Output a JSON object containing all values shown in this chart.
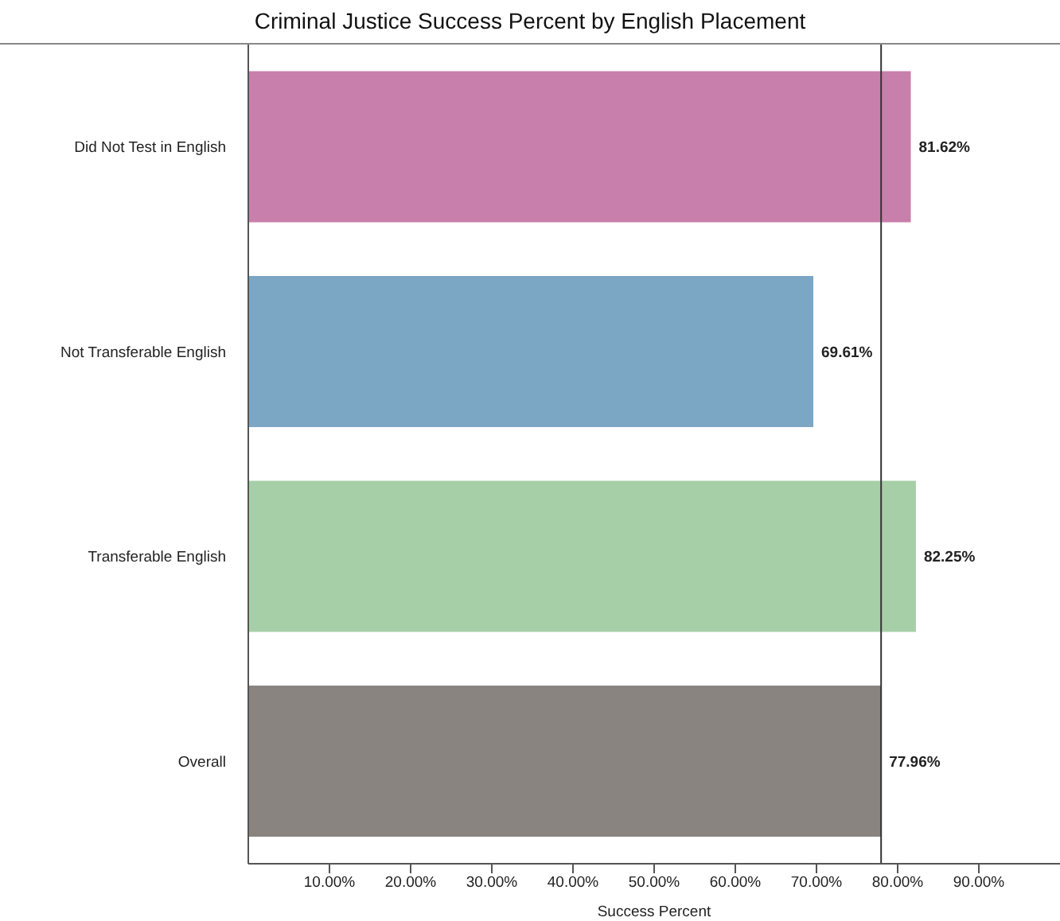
{
  "chart_data": {
    "type": "bar",
    "orientation": "horizontal",
    "title": "Criminal Justice Success Percent by English Placement",
    "xlabel": "Success Percent",
    "categories": [
      "Did Not Test in English",
      "Not Transferable English",
      "Transferable English",
      "Overall"
    ],
    "values": [
      81.62,
      69.61,
      82.25,
      77.96
    ],
    "colors": [
      "#c97fab",
      "#7ba7c4",
      "#a6cfa8",
      "#8a8480"
    ],
    "value_labels": [
      "81.62%",
      "69.61%",
      "82.25%",
      "77.96%"
    ],
    "xlim": [
      0,
      100
    ],
    "xticks": [
      {
        "value": 10,
        "label": "10.00%"
      },
      {
        "value": 20,
        "label": "20.00%"
      },
      {
        "value": 30,
        "label": "30.00%"
      },
      {
        "value": 40,
        "label": "40.00%"
      },
      {
        "value": 50,
        "label": "50.00%"
      },
      {
        "value": 60,
        "label": "60.00%"
      },
      {
        "value": 70,
        "label": "70.00%"
      },
      {
        "value": 80,
        "label": "80.00%"
      },
      {
        "value": 90,
        "label": "90.00%"
      }
    ],
    "ref_lines": [
      {
        "axis": "x",
        "value": 77.96,
        "color": "#333333"
      }
    ]
  }
}
